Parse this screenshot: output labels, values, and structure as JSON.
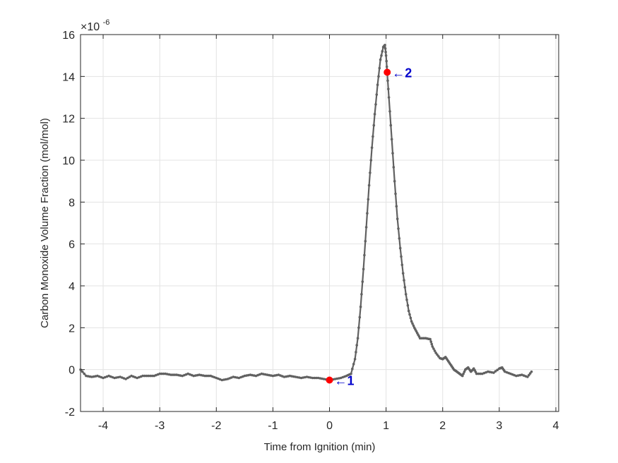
{
  "chart_data": {
    "type": "line",
    "xlabel": "Time from Ignition (min)",
    "ylabel": "Carbon Monoxide Volume Fraction (mol/mol)",
    "y_exponent_prefix": "×10",
    "y_exponent": "-6",
    "xlim": [
      -4.4,
      4.05
    ],
    "ylim": [
      -2,
      16
    ],
    "xticks": [
      -4,
      -3,
      -2,
      -1,
      0,
      1,
      2,
      3,
      4
    ],
    "yticks": [
      -2,
      0,
      2,
      4,
      6,
      8,
      10,
      12,
      14,
      16
    ],
    "xtick_labels": [
      "-4",
      "-3",
      "-2",
      "-1",
      "0",
      "1",
      "2",
      "3",
      "4"
    ],
    "ytick_labels": [
      "-2",
      "0",
      "2",
      "4",
      "6",
      "8",
      "10",
      "12",
      "14",
      "16"
    ],
    "grid": true,
    "colors": {
      "series": "#616161",
      "markers": "#ff0000",
      "annotation": "#0000cc",
      "grid": "#e3e3e3",
      "axis": "#262626"
    },
    "series": [
      {
        "points": [
          [
            -4.4,
            0.0
          ],
          [
            -4.3,
            -0.3
          ],
          [
            -4.2,
            -0.35
          ],
          [
            -4.1,
            -0.3
          ],
          [
            -4.0,
            -0.4
          ],
          [
            -3.9,
            -0.3
          ],
          [
            -3.8,
            -0.4
          ],
          [
            -3.7,
            -0.35
          ],
          [
            -3.6,
            -0.45
          ],
          [
            -3.5,
            -0.3
          ],
          [
            -3.4,
            -0.4
          ],
          [
            -3.3,
            -0.3
          ],
          [
            -3.2,
            -0.3
          ],
          [
            -3.1,
            -0.3
          ],
          [
            -3.0,
            -0.2
          ],
          [
            -2.9,
            -0.2
          ],
          [
            -2.8,
            -0.25
          ],
          [
            -2.7,
            -0.25
          ],
          [
            -2.6,
            -0.3
          ],
          [
            -2.5,
            -0.2
          ],
          [
            -2.4,
            -0.3
          ],
          [
            -2.3,
            -0.25
          ],
          [
            -2.2,
            -0.3
          ],
          [
            -2.1,
            -0.3
          ],
          [
            -2.0,
            -0.4
          ],
          [
            -1.9,
            -0.5
          ],
          [
            -1.8,
            -0.45
          ],
          [
            -1.7,
            -0.35
          ],
          [
            -1.6,
            -0.4
          ],
          [
            -1.5,
            -0.3
          ],
          [
            -1.4,
            -0.25
          ],
          [
            -1.3,
            -0.3
          ],
          [
            -1.2,
            -0.2
          ],
          [
            -1.1,
            -0.25
          ],
          [
            -1.0,
            -0.3
          ],
          [
            -0.9,
            -0.25
          ],
          [
            -0.8,
            -0.35
          ],
          [
            -0.7,
            -0.3
          ],
          [
            -0.6,
            -0.35
          ],
          [
            -0.5,
            -0.4
          ],
          [
            -0.4,
            -0.35
          ],
          [
            -0.3,
            -0.4
          ],
          [
            -0.2,
            -0.4
          ],
          [
            -0.1,
            -0.45
          ],
          [
            0.0,
            -0.5
          ],
          [
            0.1,
            -0.45
          ],
          [
            0.2,
            -0.4
          ],
          [
            0.3,
            -0.3
          ],
          [
            0.38,
            -0.2
          ],
          [
            0.45,
            0.5
          ],
          [
            0.5,
            1.5
          ],
          [
            0.55,
            3.0
          ],
          [
            0.6,
            4.8
          ],
          [
            0.65,
            6.8
          ],
          [
            0.7,
            8.8
          ],
          [
            0.75,
            10.6
          ],
          [
            0.8,
            12.2
          ],
          [
            0.85,
            13.6
          ],
          [
            0.9,
            14.8
          ],
          [
            0.95,
            15.4
          ],
          [
            0.98,
            15.5
          ],
          [
            1.0,
            15.0
          ],
          [
            1.02,
            14.2
          ],
          [
            1.05,
            13.0
          ],
          [
            1.1,
            11.0
          ],
          [
            1.15,
            9.0
          ],
          [
            1.2,
            7.2
          ],
          [
            1.25,
            5.8
          ],
          [
            1.3,
            4.6
          ],
          [
            1.35,
            3.6
          ],
          [
            1.4,
            2.8
          ],
          [
            1.45,
            2.3
          ],
          [
            1.5,
            2.0
          ],
          [
            1.55,
            1.75
          ],
          [
            1.6,
            1.5
          ],
          [
            1.7,
            1.5
          ],
          [
            1.78,
            1.45
          ],
          [
            1.82,
            1.1
          ],
          [
            1.88,
            0.8
          ],
          [
            1.95,
            0.55
          ],
          [
            2.0,
            0.5
          ],
          [
            2.05,
            0.6
          ],
          [
            2.1,
            0.4
          ],
          [
            2.15,
            0.2
          ],
          [
            2.2,
            0.0
          ],
          [
            2.25,
            -0.1
          ],
          [
            2.3,
            -0.2
          ],
          [
            2.35,
            -0.3
          ],
          [
            2.4,
            0.0
          ],
          [
            2.45,
            0.1
          ],
          [
            2.5,
            -0.1
          ],
          [
            2.55,
            0.05
          ],
          [
            2.6,
            -0.2
          ],
          [
            2.7,
            -0.2
          ],
          [
            2.8,
            -0.1
          ],
          [
            2.9,
            -0.15
          ],
          [
            3.0,
            0.05
          ],
          [
            3.05,
            0.1
          ],
          [
            3.1,
            -0.1
          ],
          [
            3.2,
            -0.2
          ],
          [
            3.3,
            -0.3
          ],
          [
            3.4,
            -0.25
          ],
          [
            3.5,
            -0.35
          ],
          [
            3.57,
            -0.1
          ]
        ]
      }
    ],
    "annotations": [
      {
        "label": "←1",
        "x": 0.0,
        "y": -0.5
      },
      {
        "label": "←2",
        "x": 1.02,
        "y": 14.2
      }
    ]
  }
}
